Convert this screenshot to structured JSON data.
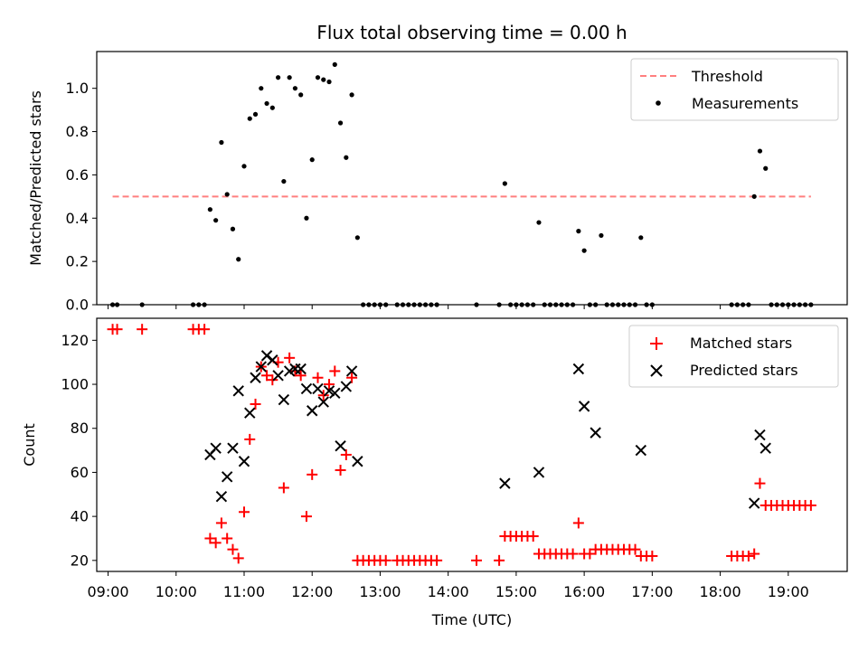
{
  "chart_data": [
    {
      "type": "scatter",
      "title": "Flux total observing time = 0.00 h",
      "xlabel": "",
      "ylabel": "Matched/Predicted stars",
      "xlim": [
        "08:50",
        "19:52"
      ],
      "ylim": [
        0,
        1.17
      ],
      "x_ticks": [
        "09:00",
        "10:00",
        "11:00",
        "12:00",
        "13:00",
        "14:00",
        "15:00",
        "16:00",
        "17:00",
        "18:00",
        "19:00"
      ],
      "y_ticks": [
        "0.0",
        "0.2",
        "0.4",
        "0.6",
        "0.8",
        "1.0"
      ],
      "grid": false,
      "legend": "top-right",
      "threshold": {
        "name": "Threshold",
        "value": 0.5,
        "x_start": "09:04",
        "x_end": "19:20",
        "color": "#ff7f7f",
        "style": "dashed"
      },
      "series": [
        {
          "name": "Measurements",
          "color": "#000000",
          "marker": "dot",
          "points": [
            [
              "09:04",
              0.0
            ],
            [
              "09:08",
              0.0
            ],
            [
              "09:30",
              0.0
            ],
            [
              "10:15",
              0.0
            ],
            [
              "10:20",
              0.0
            ],
            [
              "10:25",
              0.0
            ],
            [
              "10:30",
              0.44
            ],
            [
              "10:35",
              0.39
            ],
            [
              "10:40",
              0.75
            ],
            [
              "10:45",
              0.51
            ],
            [
              "10:50",
              0.35
            ],
            [
              "10:55",
              0.21
            ],
            [
              "11:00",
              0.64
            ],
            [
              "11:05",
              0.86
            ],
            [
              "11:10",
              0.88
            ],
            [
              "11:15",
              1.0
            ],
            [
              "11:20",
              0.93
            ],
            [
              "11:25",
              0.91
            ],
            [
              "11:30",
              1.05
            ],
            [
              "11:35",
              0.57
            ],
            [
              "11:40",
              1.05
            ],
            [
              "11:45",
              1.0
            ],
            [
              "11:50",
              0.97
            ],
            [
              "11:55",
              0.4
            ],
            [
              "12:00",
              0.67
            ],
            [
              "12:05",
              1.05
            ],
            [
              "12:10",
              1.04
            ],
            [
              "12:15",
              1.03
            ],
            [
              "12:20",
              1.11
            ],
            [
              "12:25",
              0.84
            ],
            [
              "12:30",
              0.68
            ],
            [
              "12:35",
              0.97
            ],
            [
              "12:40",
              0.31
            ],
            [
              "12:45",
              0.0
            ],
            [
              "12:50",
              0.0
            ],
            [
              "12:55",
              0.0
            ],
            [
              "13:00",
              0.0
            ],
            [
              "13:05",
              0.0
            ],
            [
              "13:15",
              0.0
            ],
            [
              "13:20",
              0.0
            ],
            [
              "13:25",
              0.0
            ],
            [
              "13:30",
              0.0
            ],
            [
              "13:35",
              0.0
            ],
            [
              "13:40",
              0.0
            ],
            [
              "13:45",
              0.0
            ],
            [
              "13:50",
              0.0
            ],
            [
              "14:25",
              0.0
            ],
            [
              "14:45",
              0.0
            ],
            [
              "14:50",
              0.56
            ],
            [
              "14:55",
              0.0
            ],
            [
              "15:00",
              0.0
            ],
            [
              "15:05",
              0.0
            ],
            [
              "15:10",
              0.0
            ],
            [
              "15:15",
              0.0
            ],
            [
              "15:20",
              0.38
            ],
            [
              "15:25",
              0.0
            ],
            [
              "15:30",
              0.0
            ],
            [
              "15:35",
              0.0
            ],
            [
              "15:40",
              0.0
            ],
            [
              "15:45",
              0.0
            ],
            [
              "15:50",
              0.0
            ],
            [
              "15:55",
              0.34
            ],
            [
              "16:00",
              0.25
            ],
            [
              "16:05",
              0.0
            ],
            [
              "16:10",
              0.0
            ],
            [
              "16:15",
              0.32
            ],
            [
              "16:20",
              0.0
            ],
            [
              "16:25",
              0.0
            ],
            [
              "16:30",
              0.0
            ],
            [
              "16:35",
              0.0
            ],
            [
              "16:40",
              0.0
            ],
            [
              "16:45",
              0.0
            ],
            [
              "16:50",
              0.31
            ],
            [
              "16:55",
              0.0
            ],
            [
              "17:00",
              0.0
            ],
            [
              "18:10",
              0.0
            ],
            [
              "18:15",
              0.0
            ],
            [
              "18:20",
              0.0
            ],
            [
              "18:25",
              0.0
            ],
            [
              "18:30",
              0.5
            ],
            [
              "18:35",
              0.71
            ],
            [
              "18:40",
              0.63
            ],
            [
              "18:45",
              0.0
            ],
            [
              "18:50",
              0.0
            ],
            [
              "18:55",
              0.0
            ],
            [
              "19:00",
              0.0
            ],
            [
              "19:05",
              0.0
            ],
            [
              "19:10",
              0.0
            ],
            [
              "19:15",
              0.0
            ],
            [
              "19:20",
              0.0
            ]
          ]
        }
      ]
    },
    {
      "type": "scatter",
      "title": "",
      "xlabel": "Time (UTC)",
      "ylabel": "Count",
      "xlim": [
        "08:50",
        "19:52"
      ],
      "ylim": [
        15,
        130
      ],
      "x_ticks": [
        "09:00",
        "10:00",
        "11:00",
        "12:00",
        "13:00",
        "14:00",
        "15:00",
        "16:00",
        "17:00",
        "18:00",
        "19:00"
      ],
      "y_ticks": [
        "20",
        "40",
        "60",
        "80",
        "100",
        "120"
      ],
      "grid": false,
      "legend": "top-right",
      "series": [
        {
          "name": "Matched stars",
          "color": "#ff0000",
          "marker": "plus",
          "points": [
            [
              "09:04",
              125
            ],
            [
              "09:08",
              125
            ],
            [
              "09:30",
              125
            ],
            [
              "10:15",
              125
            ],
            [
              "10:20",
              125
            ],
            [
              "10:25",
              125
            ],
            [
              "10:30",
              30
            ],
            [
              "10:35",
              28
            ],
            [
              "10:40",
              37
            ],
            [
              "10:45",
              30
            ],
            [
              "10:50",
              25
            ],
            [
              "10:55",
              21
            ],
            [
              "11:00",
              42
            ],
            [
              "11:05",
              75
            ],
            [
              "11:10",
              91
            ],
            [
              "11:15",
              108
            ],
            [
              "11:20",
              104
            ],
            [
              "11:25",
              102
            ],
            [
              "11:30",
              110
            ],
            [
              "11:35",
              53
            ],
            [
              "11:40",
              112
            ],
            [
              "11:45",
              106
            ],
            [
              "11:50",
              104
            ],
            [
              "11:55",
              40
            ],
            [
              "12:00",
              59
            ],
            [
              "12:05",
              103
            ],
            [
              "12:10",
              95
            ],
            [
              "12:15",
              100
            ],
            [
              "12:20",
              106
            ],
            [
              "12:25",
              61
            ],
            [
              "12:30",
              68
            ],
            [
              "12:35",
              103
            ],
            [
              "12:40",
              20
            ],
            [
              "12:45",
              20
            ],
            [
              "12:50",
              20
            ],
            [
              "12:55",
              20
            ],
            [
              "13:00",
              20
            ],
            [
              "13:05",
              20
            ],
            [
              "13:15",
              20
            ],
            [
              "13:20",
              20
            ],
            [
              "13:25",
              20
            ],
            [
              "13:30",
              20
            ],
            [
              "13:35",
              20
            ],
            [
              "13:40",
              20
            ],
            [
              "13:45",
              20
            ],
            [
              "13:50",
              20
            ],
            [
              "14:25",
              20
            ],
            [
              "14:45",
              20
            ],
            [
              "14:50",
              31
            ],
            [
              "14:55",
              31
            ],
            [
              "15:00",
              31
            ],
            [
              "15:05",
              31
            ],
            [
              "15:10",
              31
            ],
            [
              "15:15",
              31
            ],
            [
              "15:20",
              23
            ],
            [
              "15:25",
              23
            ],
            [
              "15:30",
              23
            ],
            [
              "15:35",
              23
            ],
            [
              "15:40",
              23
            ],
            [
              "15:45",
              23
            ],
            [
              "15:50",
              23
            ],
            [
              "15:55",
              37
            ],
            [
              "16:00",
              23
            ],
            [
              "16:05",
              23
            ],
            [
              "16:10",
              25
            ],
            [
              "16:15",
              25
            ],
            [
              "16:20",
              25
            ],
            [
              "16:25",
              25
            ],
            [
              "16:30",
              25
            ],
            [
              "16:35",
              25
            ],
            [
              "16:40",
              25
            ],
            [
              "16:45",
              25
            ],
            [
              "16:50",
              22
            ],
            [
              "16:55",
              22
            ],
            [
              "17:00",
              22
            ],
            [
              "18:10",
              22
            ],
            [
              "18:15",
              22
            ],
            [
              "18:20",
              22
            ],
            [
              "18:25",
              22
            ],
            [
              "18:30",
              23
            ],
            [
              "18:35",
              55
            ],
            [
              "18:40",
              45
            ],
            [
              "18:45",
              45
            ],
            [
              "18:50",
              45
            ],
            [
              "18:55",
              45
            ],
            [
              "19:00",
              45
            ],
            [
              "19:05",
              45
            ],
            [
              "19:10",
              45
            ],
            [
              "19:15",
              45
            ],
            [
              "19:20",
              45
            ]
          ]
        },
        {
          "name": "Predicted stars",
          "color": "#000000",
          "marker": "x",
          "points": [
            [
              "10:30",
              68
            ],
            [
              "10:35",
              71
            ],
            [
              "10:40",
              49
            ],
            [
              "10:45",
              58
            ],
            [
              "10:50",
              71
            ],
            [
              "10:55",
              97
            ],
            [
              "11:00",
              65
            ],
            [
              "11:05",
              87
            ],
            [
              "11:10",
              103
            ],
            [
              "11:15",
              108
            ],
            [
              "11:20",
              113
            ],
            [
              "11:25",
              111
            ],
            [
              "11:30",
              104
            ],
            [
              "11:35",
              93
            ],
            [
              "11:40",
              106
            ],
            [
              "11:45",
              107
            ],
            [
              "11:50",
              107
            ],
            [
              "11:55",
              98
            ],
            [
              "12:00",
              88
            ],
            [
              "12:05",
              98
            ],
            [
              "12:10",
              92
            ],
            [
              "12:15",
              97
            ],
            [
              "12:20",
              96
            ],
            [
              "12:25",
              72
            ],
            [
              "12:30",
              99
            ],
            [
              "12:35",
              106
            ],
            [
              "12:40",
              65
            ],
            [
              "14:50",
              55
            ],
            [
              "15:20",
              60
            ],
            [
              "15:55",
              107
            ],
            [
              "16:00",
              90
            ],
            [
              "16:10",
              78
            ],
            [
              "16:50",
              70
            ],
            [
              "18:30",
              46
            ],
            [
              "18:35",
              77
            ],
            [
              "18:40",
              71
            ]
          ]
        }
      ]
    }
  ]
}
